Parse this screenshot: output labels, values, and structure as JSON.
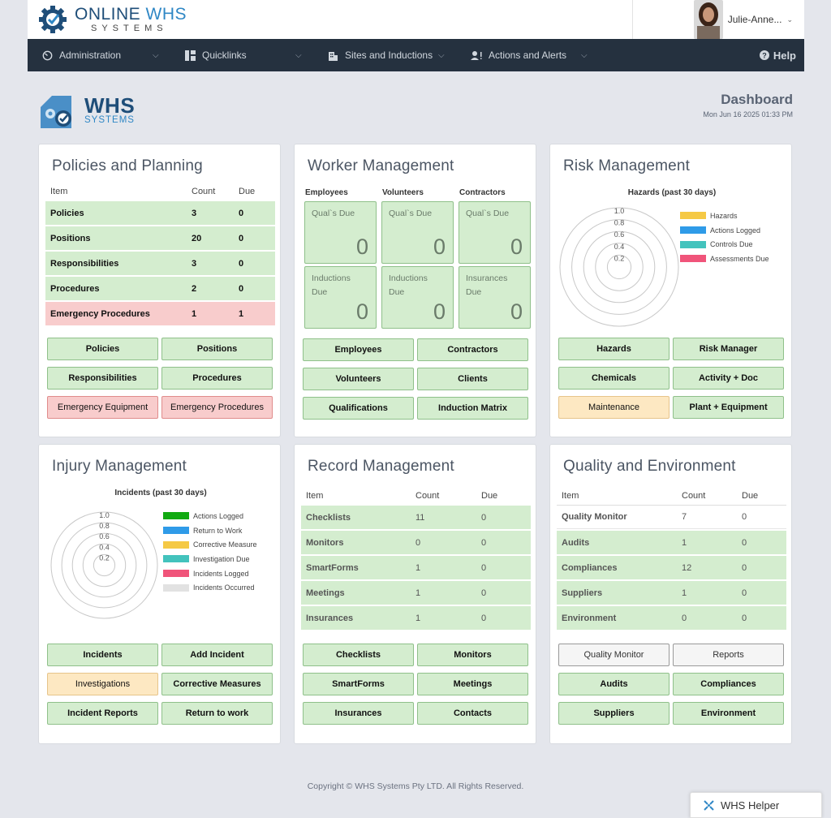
{
  "header": {
    "logo_line1": "ONLINE",
    "logo_line1b": "WHS",
    "logo_line2": "SYSTEMS",
    "user_name": "Julie-Anne..."
  },
  "nav": {
    "items": [
      {
        "label": "Administration",
        "icon": "dashboard-gauge-icon"
      },
      {
        "label": "Quicklinks",
        "icon": "layout-icon"
      },
      {
        "label": "Sites and Inductions",
        "icon": "building-icon"
      },
      {
        "label": "Actions and Alerts",
        "icon": "user-alert-icon"
      }
    ],
    "help": "Help"
  },
  "brand": {
    "line1": "WHS",
    "line2": "SYSTEMS"
  },
  "dashboard": {
    "title": "Dashboard",
    "datetime": "Mon Jun 16 2025 01:33 PM"
  },
  "policies": {
    "title": "Policies and Planning",
    "headers": [
      "Item",
      "Count",
      "Due"
    ],
    "rows": [
      {
        "item": "Policies",
        "count": "3",
        "due": "0",
        "status": "ok"
      },
      {
        "item": "Positions",
        "count": "20",
        "due": "0",
        "status": "ok"
      },
      {
        "item": "Responsibilities",
        "count": "3",
        "due": "0",
        "status": "ok"
      },
      {
        "item": "Procedures",
        "count": "2",
        "due": "0",
        "status": "ok"
      },
      {
        "item": "Emergency Procedures",
        "count": "1",
        "due": "1",
        "status": "due"
      }
    ],
    "buttons": [
      "Policies",
      "Positions",
      "Responsibilities",
      "Procedures",
      "Emergency Equipment",
      "Emergency Procedures"
    ]
  },
  "worker": {
    "title": "Worker Management",
    "columns": [
      "Employees",
      "Volunteers",
      "Contractors"
    ],
    "tiles": [
      {
        "label": "Qual`s Due",
        "value": "0"
      },
      {
        "label": "Qual`s Due",
        "value": "0"
      },
      {
        "label": "Qual`s Due",
        "value": "0"
      },
      {
        "label": "Inductions Due",
        "value": "0"
      },
      {
        "label": "Inductions Due",
        "value": "0"
      },
      {
        "label": "Insurances Due",
        "value": "0"
      }
    ],
    "buttons": [
      "Employees",
      "Contractors",
      "Volunteers",
      "Clients",
      "Qualifications",
      "Induction Matrix"
    ]
  },
  "risk": {
    "title": "Risk Management",
    "chart_title": "Hazards (past 30 days)",
    "buttons": [
      "Hazards",
      "Risk Manager",
      "Chemicals",
      "Activity + Doc",
      "Maintenance",
      "Plant + Equipment"
    ]
  },
  "injury": {
    "title": "Injury Management",
    "chart_title": "Incidents (past 30 days)",
    "buttons": [
      "Incidents",
      "Add Incident",
      "Investigations",
      "Corrective Measures",
      "Incident Reports",
      "Return to work"
    ]
  },
  "record": {
    "title": "Record Management",
    "headers": [
      "Item",
      "Count",
      "Due"
    ],
    "rows": [
      {
        "item": "Checklists",
        "count": "11",
        "due": "0"
      },
      {
        "item": "Monitors",
        "count": "0",
        "due": "0"
      },
      {
        "item": "SmartForms",
        "count": "1",
        "due": "0"
      },
      {
        "item": "Meetings",
        "count": "1",
        "due": "0"
      },
      {
        "item": "Insurances",
        "count": "1",
        "due": "0"
      }
    ],
    "buttons": [
      "Checklists",
      "Monitors",
      "SmartForms",
      "Meetings",
      "Insurances",
      "Contacts"
    ]
  },
  "quality": {
    "title": "Quality and Environment",
    "headers": [
      "Item",
      "Count",
      "Due"
    ],
    "rows": [
      {
        "item": "Quality Monitor",
        "count": "7",
        "due": "0"
      },
      {
        "item": "Audits",
        "count": "1",
        "due": "0"
      },
      {
        "item": "Compliances",
        "count": "12",
        "due": "0"
      },
      {
        "item": "Suppliers",
        "count": "1",
        "due": "0"
      },
      {
        "item": "Environment",
        "count": "0",
        "due": "0"
      }
    ],
    "buttons": [
      "Quality Monitor",
      "Reports",
      "Audits",
      "Compliances",
      "Suppliers",
      "Environment"
    ]
  },
  "footer": "Copyright © WHS Systems Pty LTD. All Rights Reserved.",
  "helper": "WHS Helper",
  "colors": {
    "nav_bg": "#25313f",
    "ok": "#d4edcf",
    "due": "#f8cccc",
    "warn": "#fde8c2",
    "brand": "#1f4e79"
  },
  "chart_data": [
    {
      "type": "radar",
      "title": "Hazards (past 30 days)",
      "ticks": [
        "1.0",
        "0.8",
        "0.6",
        "0.4",
        "0.2"
      ],
      "series": [
        {
          "name": "Hazards",
          "color": "#f5c945",
          "values": []
        },
        {
          "name": "Actions Logged",
          "color": "#2f9be8",
          "values": []
        },
        {
          "name": "Controls Due",
          "color": "#43c3bd",
          "values": []
        },
        {
          "name": "Assessments Due",
          "color": "#f0547a",
          "values": []
        }
      ]
    },
    {
      "type": "radar",
      "title": "Incidents (past 30 days)",
      "ticks": [
        "1.0",
        "0.8",
        "0.6",
        "0.4",
        "0.2"
      ],
      "series": [
        {
          "name": "Actions Logged",
          "color": "#11aa11",
          "values": []
        },
        {
          "name": "Return to Work",
          "color": "#2f9be8",
          "values": []
        },
        {
          "name": "Corrective Measure",
          "color": "#f5c945",
          "values": []
        },
        {
          "name": "Investigation Due",
          "color": "#43c3bd",
          "values": []
        },
        {
          "name": "Incidents Logged",
          "color": "#f0547a",
          "values": []
        },
        {
          "name": "Incidents Occurred",
          "color": "#e2e2e2",
          "values": []
        }
      ]
    }
  ]
}
